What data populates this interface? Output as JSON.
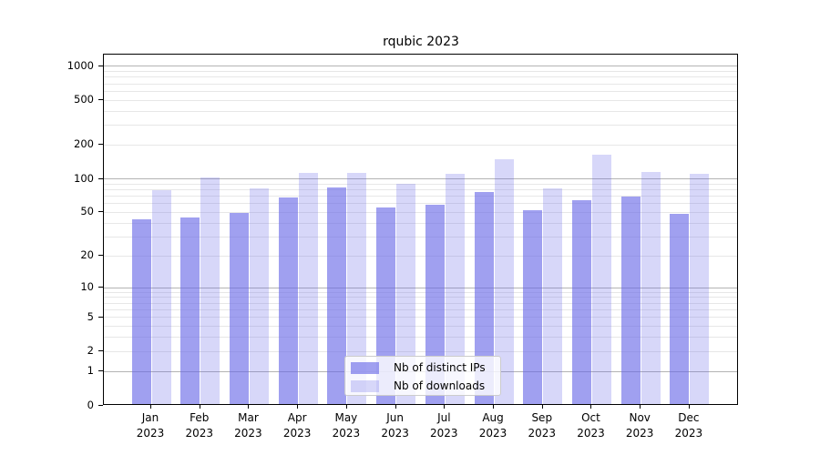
{
  "title": "rqubic 2023",
  "chart_data": {
    "type": "bar",
    "title": "rqubic 2023",
    "categories": [
      "Jan 2023",
      "Feb 2023",
      "Mar 2023",
      "Apr 2023",
      "May 2023",
      "Jun 2023",
      "Jul 2023",
      "Aug 2023",
      "Sep 2023",
      "Oct 2023",
      "Nov 2023",
      "Dec 2023"
    ],
    "series": [
      {
        "name": "Nb of distinct IPs",
        "values": [
          42,
          44,
          48,
          66,
          82,
          54,
          57,
          74,
          51,
          62,
          68,
          47
        ]
      },
      {
        "name": "Nb of downloads",
        "values": [
          77,
          101,
          80,
          110,
          110,
          87,
          108,
          145,
          80,
          160,
          112,
          108
        ]
      }
    ],
    "xlabel": "",
    "ylabel": "",
    "yscale": "log1p",
    "yticks": [
      0,
      1,
      2,
      5,
      10,
      20,
      50,
      100,
      200,
      500,
      1000
    ],
    "major_grid_values": [
      1,
      10,
      100,
      1000
    ],
    "ylim": [
      0,
      1280
    ],
    "grid": true,
    "legend_position": "bottom-center-inside"
  },
  "ui": {
    "legend": {
      "items": [
        {
          "label": "Nb of distinct IPs",
          "color_key": "ips_bar"
        },
        {
          "label": "Nb of downloads",
          "color_key": "downloads_bar"
        }
      ]
    },
    "colors": {
      "ips_bar": "rgba(102,102,230,0.62)",
      "downloads_bar": "rgba(102,102,230,0.26)",
      "ips_bar_hex": "#a0a0ef",
      "downloads_bar_hex": "#d7d7f9",
      "major_grid": "#b3b3b3",
      "minor_grid": "#e7e7e7",
      "axis": "#000000",
      "legend_border": "#cccccc"
    }
  }
}
